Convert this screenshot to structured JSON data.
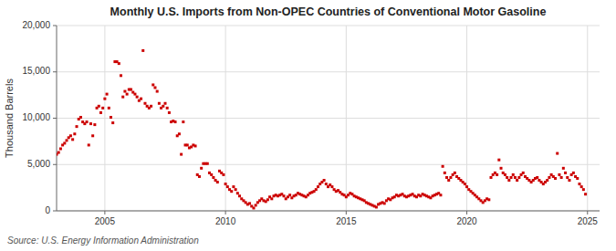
{
  "chart_data": {
    "type": "scatter",
    "title": "Monthly U.S. Imports from Non-OPEC Countries of Conventional Motor Gasoline",
    "ylabel": "Thousand Barrels",
    "annotations": [
      "Source: U.S. Energy Information Administration"
    ],
    "color": "#CC0000",
    "marker": "square",
    "grid": true,
    "xlim": [
      2003.0,
      2025.5
    ],
    "ylim": [
      0,
      20000
    ],
    "xticks": [
      2005,
      2010,
      2015,
      2020,
      2025
    ],
    "yticks": [
      0,
      {
        "value": 5000,
        "label": "5,000"
      },
      {
        "value": 10000,
        "label": "10,000"
      },
      {
        "value": 15000,
        "label": "15,000"
      },
      {
        "value": 20000,
        "label": "20,000"
      }
    ],
    "x": [
      2003.0,
      2003.083,
      2003.167,
      2003.25,
      2003.333,
      2003.417,
      2003.5,
      2003.583,
      2003.667,
      2003.75,
      2003.833,
      2003.917,
      2004.0,
      2004.083,
      2004.167,
      2004.25,
      2004.333,
      2004.417,
      2004.5,
      2004.583,
      2004.667,
      2004.75,
      2004.833,
      2004.917,
      2005.0,
      2005.083,
      2005.167,
      2005.25,
      2005.333,
      2005.417,
      2005.5,
      2005.583,
      2005.667,
      2005.75,
      2005.833,
      2005.917,
      2006.0,
      2006.083,
      2006.167,
      2006.25,
      2006.333,
      2006.417,
      2006.5,
      2006.583,
      2006.667,
      2006.75,
      2006.833,
      2006.917,
      2007.0,
      2007.083,
      2007.167,
      2007.25,
      2007.333,
      2007.417,
      2007.5,
      2007.583,
      2007.667,
      2007.75,
      2007.833,
      2007.917,
      2008.0,
      2008.083,
      2008.167,
      2008.25,
      2008.333,
      2008.417,
      2008.5,
      2008.583,
      2008.667,
      2008.75,
      2008.833,
      2008.917,
      2009.0,
      2009.083,
      2009.167,
      2009.25,
      2009.333,
      2009.417,
      2009.5,
      2009.583,
      2009.667,
      2009.75,
      2009.833,
      2009.917,
      2010.0,
      2010.083,
      2010.167,
      2010.25,
      2010.333,
      2010.417,
      2010.5,
      2010.583,
      2010.667,
      2010.75,
      2010.833,
      2010.917,
      2011.0,
      2011.083,
      2011.167,
      2011.25,
      2011.333,
      2011.417,
      2011.5,
      2011.583,
      2011.667,
      2011.75,
      2011.833,
      2011.917,
      2012.0,
      2012.083,
      2012.167,
      2012.25,
      2012.333,
      2012.417,
      2012.5,
      2012.583,
      2012.667,
      2012.75,
      2012.833,
      2012.917,
      2013.0,
      2013.083,
      2013.167,
      2013.25,
      2013.333,
      2013.417,
      2013.5,
      2013.583,
      2013.667,
      2013.75,
      2013.833,
      2013.917,
      2014.0,
      2014.083,
      2014.167,
      2014.25,
      2014.333,
      2014.417,
      2014.5,
      2014.583,
      2014.667,
      2014.75,
      2014.833,
      2014.917,
      2015.0,
      2015.083,
      2015.167,
      2015.25,
      2015.333,
      2015.417,
      2015.5,
      2015.583,
      2015.667,
      2015.75,
      2015.833,
      2015.917,
      2016.0,
      2016.083,
      2016.167,
      2016.25,
      2016.333,
      2016.417,
      2016.5,
      2016.583,
      2016.667,
      2016.75,
      2016.833,
      2016.917,
      2017.0,
      2017.083,
      2017.167,
      2017.25,
      2017.333,
      2017.417,
      2017.5,
      2017.583,
      2017.667,
      2017.75,
      2017.833,
      2017.917,
      2018.0,
      2018.083,
      2018.167,
      2018.25,
      2018.333,
      2018.417,
      2018.5,
      2018.583,
      2018.667,
      2018.75,
      2018.833,
      2018.917,
      2019.0,
      2019.083,
      2019.167,
      2019.25,
      2019.333,
      2019.417,
      2019.5,
      2019.583,
      2019.667,
      2019.75,
      2019.833,
      2019.917,
      2020.0,
      2020.083,
      2020.167,
      2020.25,
      2020.333,
      2020.417,
      2020.5,
      2020.583,
      2020.667,
      2020.75,
      2020.833,
      2020.917,
      2021.0,
      2021.083,
      2021.167,
      2021.25,
      2021.333,
      2021.417,
      2021.5,
      2021.583,
      2021.667,
      2021.75,
      2021.833,
      2021.917,
      2022.0,
      2022.083,
      2022.167,
      2022.25,
      2022.333,
      2022.417,
      2022.5,
      2022.583,
      2022.667,
      2022.75,
      2022.833,
      2022.917,
      2023.0,
      2023.083,
      2023.167,
      2023.25,
      2023.333,
      2023.417,
      2023.5,
      2023.583,
      2023.667,
      2023.75,
      2023.833,
      2023.917,
      2024.0,
      2024.083,
      2024.167,
      2024.25,
      2024.333,
      2024.417,
      2024.5,
      2024.583,
      2024.667,
      2024.75,
      2024.833,
      2024.917
    ],
    "values": [
      6100,
      6300,
      6700,
      7100,
      7300,
      7600,
      7900,
      8100,
      7700,
      8300,
      9100,
      9900,
      10100,
      9600,
      9400,
      9600,
      7100,
      9400,
      8100,
      9300,
      11100,
      11300,
      10600,
      11100,
      12100,
      12600,
      11100,
      10100,
      9500,
      16100,
      16100,
      15900,
      14600,
      12300,
      12900,
      12600,
      13100,
      13100,
      12800,
      12600,
      12300,
      11900,
      12100,
      17300,
      11600,
      11300,
      11100,
      11300,
      13600,
      13300,
      12900,
      11600,
      11100,
      11300,
      11600,
      11100,
      10600,
      9600,
      9700,
      9600,
      8100,
      8300,
      6100,
      9600,
      7100,
      7100,
      6800,
      6900,
      7100,
      7000,
      3900,
      3700,
      4600,
      5100,
      5100,
      5100,
      4100,
      3900,
      3600,
      3300,
      3100,
      4300,
      4100,
      3900,
      2900,
      2600,
      2300,
      2100,
      2600,
      2300,
      1900,
      1600,
      1300,
      1100,
      900,
      700,
      800,
      500,
      300,
      600,
      900,
      1100,
      1300,
      1100,
      1000,
      1200,
      1500,
      1300,
      1600,
      1700,
      1600,
      1700,
      1800,
      1600,
      1300,
      1500,
      1700,
      1400,
      1600,
      1700,
      1900,
      1800,
      1700,
      1600,
      1500,
      1700,
      1900,
      2000,
      2100,
      2300,
      2600,
      2900,
      3100,
      3300,
      2900,
      2600,
      2800,
      2600,
      2300,
      2100,
      2200,
      2000,
      1800,
      1700,
      1500,
      1700,
      1900,
      1800,
      1600,
      1500,
      1400,
      1300,
      1200,
      1100,
      900,
      800,
      700,
      600,
      500,
      400,
      700,
      800,
      900,
      800,
      1100,
      1300,
      1200,
      1400,
      1500,
      1700,
      1600,
      1700,
      1800,
      1600,
      1500,
      1600,
      1700,
      1800,
      1600,
      1500,
      1700,
      1600,
      1800,
      1700,
      1600,
      1500,
      1400,
      1600,
      1700,
      1800,
      1900,
      1700,
      4800,
      4100,
      3600,
      3300,
      3600,
      3900,
      4100,
      3700,
      3500,
      3300,
      3100,
      2900,
      2600,
      2300,
      2100,
      1900,
      1700,
      1500,
      1300,
      1100,
      900,
      1100,
      1300,
      1200,
      3600,
      3900,
      4100,
      3900,
      5500,
      4600,
      4100,
      3900,
      3600,
      3300,
      3600,
      3900,
      3600,
      3300,
      3600,
      3900,
      4100,
      3700,
      3500,
      3300,
      3100,
      3300,
      3500,
      3600,
      3300,
      3100,
      2900,
      3100,
      3300,
      3600,
      3900,
      3700,
      3500,
      6200,
      3900,
      3600,
      4600,
      4100,
      3600,
      3300,
      3900,
      4100,
      3700,
      3500,
      2900,
      2600,
      2300,
      1800
    ]
  }
}
